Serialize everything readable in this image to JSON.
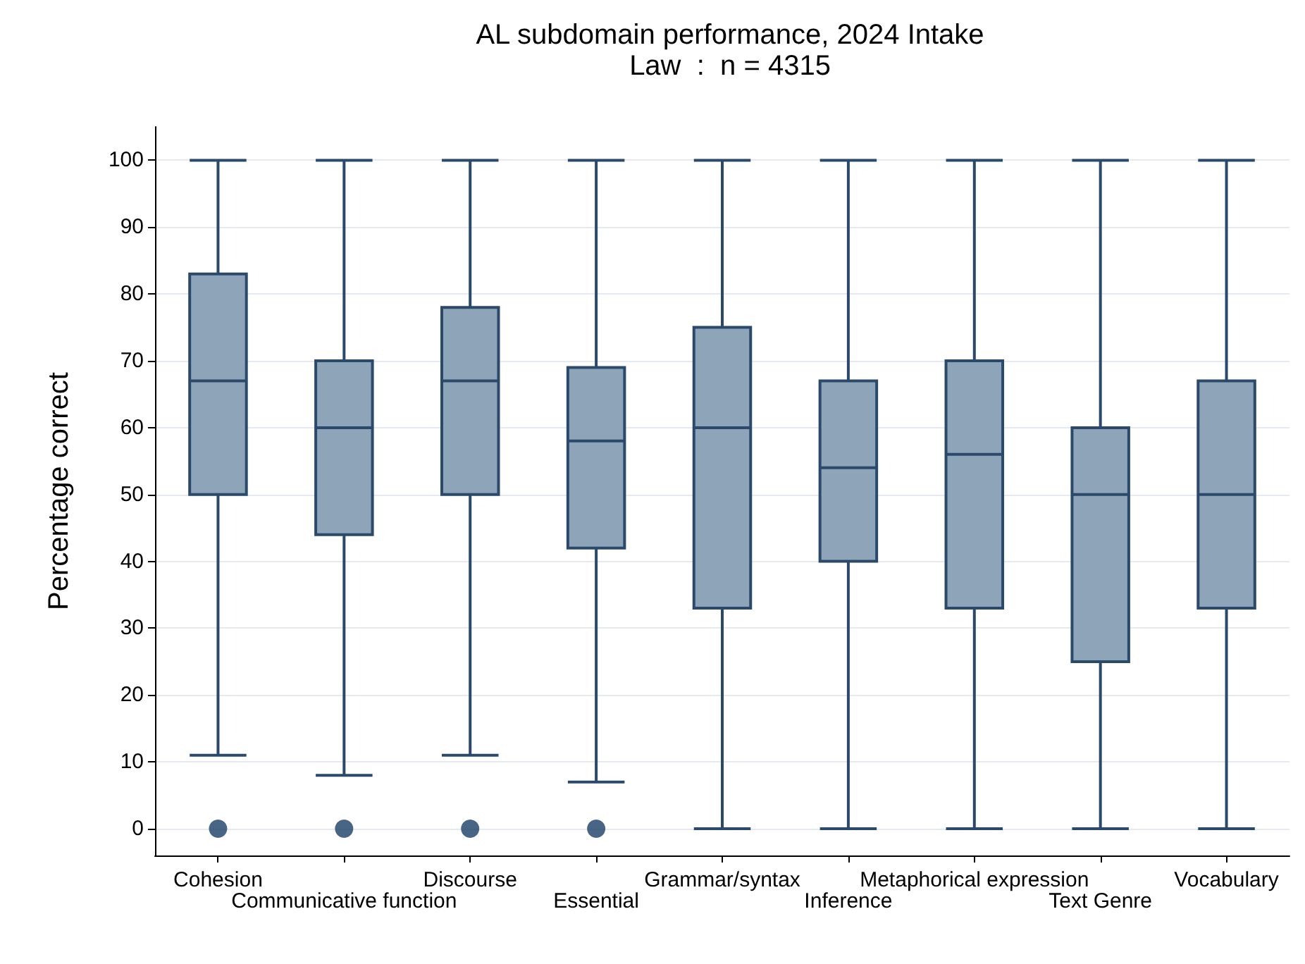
{
  "chart_data": {
    "type": "box",
    "title": "AL subdomain performance, 2024 Intake",
    "subtitle": "Law  :  n = 4315",
    "ylabel": "Percentage correct",
    "categories": [
      "Cohesion",
      "Communicative function",
      "Discourse",
      "Essential",
      "Grammar/syntax",
      "Inference",
      "Metaphorical expression",
      "Text Genre",
      "Vocabulary"
    ],
    "color": "#8ea4b9",
    "boxes": [
      {
        "low": 11,
        "q1": 50,
        "median": 67,
        "q3": 83,
        "high": 100,
        "outliers": [
          0
        ]
      },
      {
        "low": 8,
        "q1": 44,
        "median": 60,
        "q3": 70,
        "high": 100,
        "outliers": [
          0
        ]
      },
      {
        "low": 11,
        "q1": 50,
        "median": 67,
        "q3": 78,
        "high": 100,
        "outliers": [
          0
        ]
      },
      {
        "low": 7,
        "q1": 42,
        "median": 58,
        "q3": 69,
        "high": 100,
        "outliers": [
          0
        ]
      },
      {
        "low": 0,
        "q1": 33,
        "median": 60,
        "q3": 75,
        "high": 100
      },
      {
        "low": 0,
        "q1": 40,
        "median": 54,
        "q3": 67,
        "high": 100
      },
      {
        "low": 0,
        "q1": 33,
        "median": 56,
        "q3": 70,
        "high": 100
      },
      {
        "low": 0,
        "q1": 25,
        "median": 50,
        "q3": 60,
        "high": 100
      },
      {
        "low": 0,
        "q1": 33,
        "median": 50,
        "q3": 67,
        "high": 100
      }
    ],
    "ylim": [
      -4,
      105
    ],
    "yticks": [
      0,
      10,
      20,
      30,
      40,
      50,
      60,
      70,
      80,
      90,
      100
    ],
    "grid": "y"
  }
}
